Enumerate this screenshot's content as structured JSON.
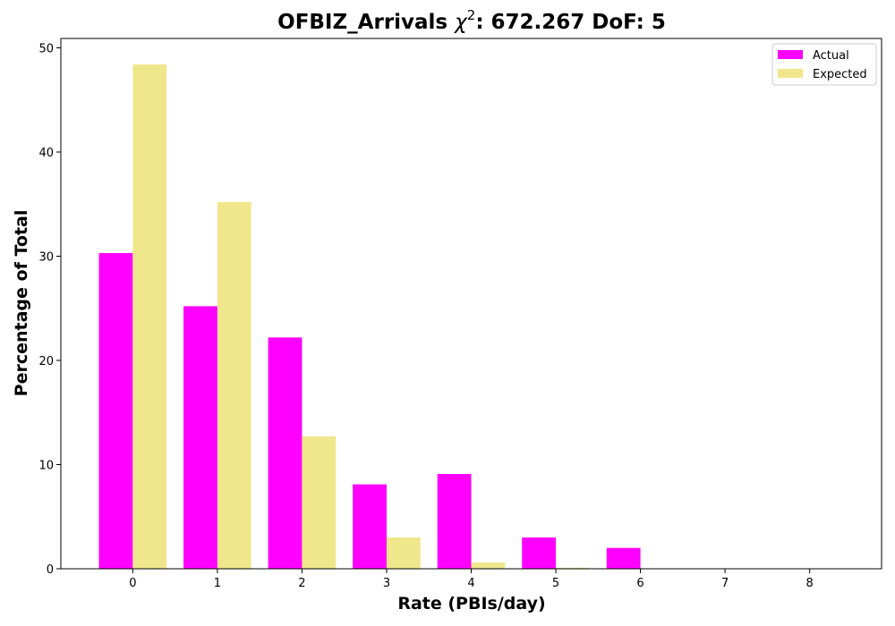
{
  "chart_data": {
    "type": "bar",
    "title_prefix": "OFBIZ_Arrivals ",
    "title_symbol": "χ",
    "title_superscript": "2",
    "title_suffix": ": 672.267 DoF: 5",
    "xlabel": "Rate (PBIs/day)",
    "ylabel": "Percentage of Total",
    "categories": [
      "0",
      "1",
      "2",
      "3",
      "4",
      "5",
      "6",
      "7",
      "8"
    ],
    "series": [
      {
        "name": "Actual",
        "color": "#ff00ff",
        "values": [
          30.3,
          25.2,
          22.2,
          8.1,
          9.1,
          3.0,
          2.0,
          0,
          0
        ]
      },
      {
        "name": "Expected",
        "color": "#f0e68c",
        "values": [
          48.4,
          35.2,
          12.7,
          3.0,
          0.6,
          0.1,
          0,
          0,
          0
        ]
      }
    ],
    "x_range": [
      -0.85,
      8.85
    ],
    "ylim": [
      0,
      50.9
    ],
    "yticks": [
      0,
      10,
      20,
      30,
      40,
      50
    ],
    "grid": false,
    "legend": "top-right"
  }
}
